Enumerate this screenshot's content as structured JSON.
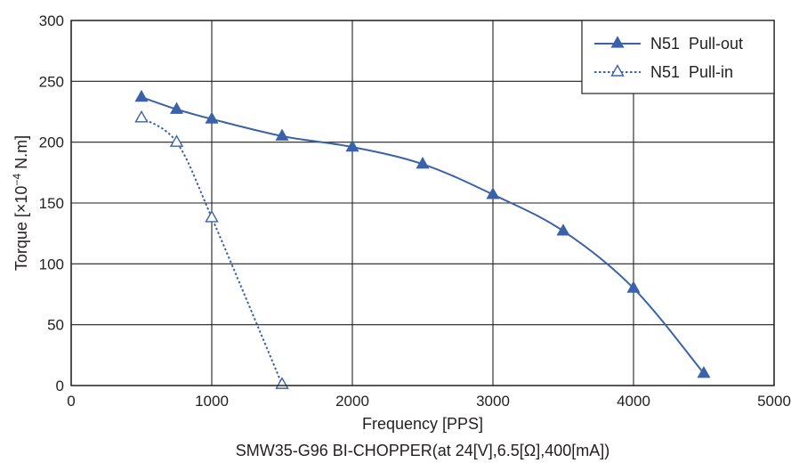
{
  "chart_data": {
    "type": "line",
    "caption": "SMW35-G96 BI-CHOPPER(at 24[V],6.5[Ω],400[mA])",
    "xlabel": "Frequency [PPS]",
    "ylabel_parts": {
      "pre": "Torque [×10",
      "sup": "−4",
      "post": " N.m]"
    },
    "xlim": [
      0,
      5000
    ],
    "ylim": [
      0,
      300
    ],
    "xticks": [
      0,
      1000,
      2000,
      3000,
      4000,
      5000
    ],
    "yticks": [
      0,
      50,
      100,
      150,
      200,
      250,
      300
    ],
    "grid": true,
    "legend_position": "top-right",
    "series": [
      {
        "name": "N51  Pull-out",
        "marker": "filled-triangle",
        "line_style": "solid",
        "color": "#3a62aa",
        "x": [
          500,
          750,
          1000,
          1500,
          2000,
          2500,
          3000,
          3500,
          4000,
          4500
        ],
        "y": [
          237,
          227,
          219,
          205,
          196,
          182,
          157,
          127,
          80,
          10
        ]
      },
      {
        "name": "N51  Pull-in",
        "marker": "open-triangle",
        "line_style": "dotted",
        "color": "#3a62aa",
        "x": [
          500,
          750,
          1000,
          1500
        ],
        "y": [
          220,
          200,
          138,
          1
        ]
      }
    ]
  }
}
